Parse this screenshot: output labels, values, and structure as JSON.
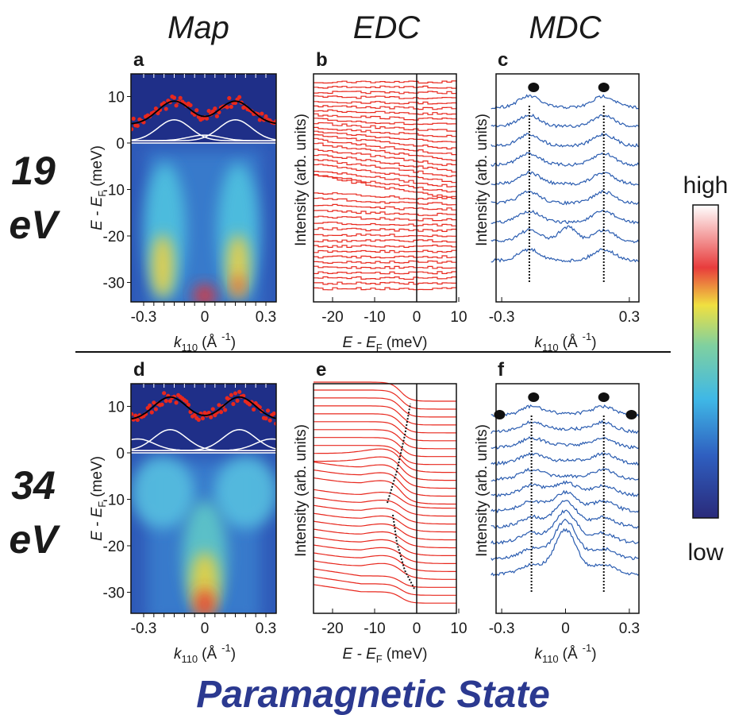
{
  "header": {
    "columns": [
      "Map",
      "EDC",
      "MDC"
    ]
  },
  "rows": [
    {
      "energy": "19",
      "unit": "eV"
    },
    {
      "energy": "34",
      "unit": "eV"
    }
  ],
  "panel_letters": [
    "a",
    "b",
    "c",
    "d",
    "e",
    "f"
  ],
  "axes": {
    "energy": {
      "label": "E - E",
      "sub": "F",
      "unit": "(meV)"
    },
    "map_y_ticks": [
      "10",
      "0",
      "-10",
      "-20",
      "-30"
    ],
    "edc_x_ticks": [
      "-20",
      "-10",
      "0",
      "10"
    ],
    "k": {
      "label": "k",
      "sub": "110",
      "unit": "(Å",
      "sup": "-1",
      "close": ")"
    },
    "map_x_ticks": [
      "-0.3",
      "0",
      "0.3"
    ],
    "mdc_x_ticks_top": [
      "-0.3",
      "0.3"
    ],
    "mdc_x_ticks_bottom": [
      "-0.3",
      "0",
      "0.3"
    ],
    "intensity": "Intensity (arb. units)"
  },
  "colorbar": {
    "high": "high",
    "low": "low"
  },
  "footer": "Paramagnetic State"
}
